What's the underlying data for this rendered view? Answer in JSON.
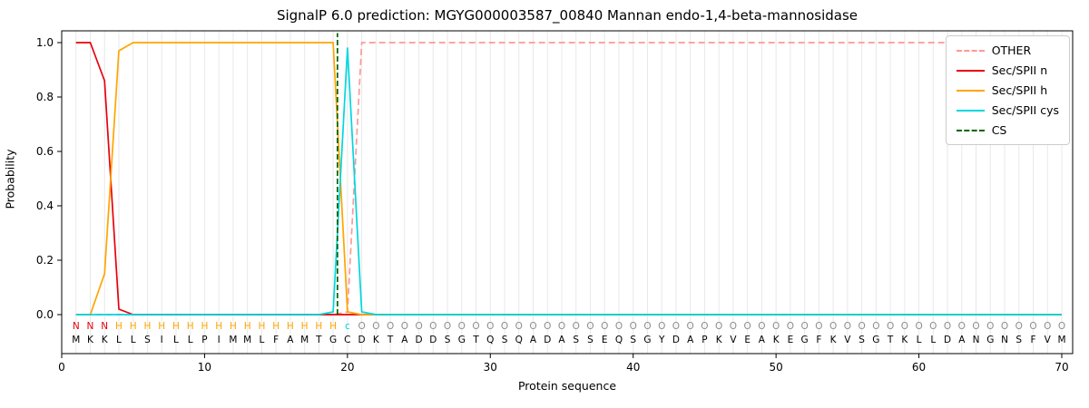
{
  "title": "SignalP 6.0 prediction: MGYG000003587_00840 Mannan endo-1,4-beta-mannosidase",
  "xlabel": "Protein sequence",
  "ylabel": "Probability",
  "chart_data": {
    "type": "line",
    "x_ticks": [
      0,
      10,
      20,
      30,
      40,
      50,
      60,
      70
    ],
    "y_ticks": [
      0.0,
      0.2,
      0.4,
      0.6,
      0.8,
      1.0
    ],
    "xlim": [
      0,
      70.8
    ],
    "ylim": [
      -0.14,
      1.04
    ],
    "grid": "vertical-per-residue",
    "legend_position": "upper-right",
    "sequence": "MKKLLSILLPIMMLFAMTGCDKTADDSGTQSQADASSEQSGYDAPKVEAKEGFKVSGTKLLDANGNSFVM",
    "position_labels": "NNNHHHHHHHHHHHHHHHHcOOOOOOOOOOOOOOOOOOOOOOOOOOOOOOOOOOOOOOOOOOOOOOOOOO",
    "label_colors": {
      "N": "#e8000b",
      "H": "#ffa500",
      "c": "#00d7de",
      "O": "#8c8c8c"
    },
    "cs": {
      "name": "CS",
      "position": 19.3,
      "color": "#006400",
      "dash": true
    },
    "series": [
      {
        "name": "OTHER",
        "color": "#ff9896",
        "dash": true,
        "values": [
          0,
          0,
          0,
          0,
          0,
          0,
          0,
          0,
          0,
          0,
          0,
          0,
          0,
          0,
          0,
          0,
          0,
          0,
          0,
          0.01,
          1,
          1,
          1,
          1,
          1,
          1,
          1,
          1,
          1,
          1,
          1,
          1,
          1,
          1,
          1,
          1,
          1,
          1,
          1,
          1,
          1,
          1,
          1,
          1,
          1,
          1,
          1,
          1,
          1,
          1,
          1,
          1,
          1,
          1,
          1,
          1,
          1,
          1,
          1,
          1,
          1,
          1,
          1,
          1,
          1,
          1,
          1,
          1,
          1,
          1
        ]
      },
      {
        "name": "Sec/SPII n",
        "color": "#e8000b",
        "dash": false,
        "values": [
          1,
          1,
          0.86,
          0.02,
          0,
          0,
          0,
          0,
          0,
          0,
          0,
          0,
          0,
          0,
          0,
          0,
          0,
          0,
          0,
          0,
          0,
          0,
          0,
          0,
          0,
          0,
          0,
          0,
          0,
          0,
          0,
          0,
          0,
          0,
          0,
          0,
          0,
          0,
          0,
          0,
          0,
          0,
          0,
          0,
          0,
          0,
          0,
          0,
          0,
          0,
          0,
          0,
          0,
          0,
          0,
          0,
          0,
          0,
          0,
          0,
          0,
          0,
          0,
          0,
          0,
          0,
          0,
          0,
          0,
          0
        ]
      },
      {
        "name": "Sec/SPII h",
        "color": "#ffa500",
        "dash": false,
        "values": [
          0,
          0,
          0.15,
          0.97,
          1,
          1,
          1,
          1,
          1,
          1,
          1,
          1,
          1,
          1,
          1,
          1,
          1,
          1,
          1,
          0.01,
          0,
          0,
          0,
          0,
          0,
          0,
          0,
          0,
          0,
          0,
          0,
          0,
          0,
          0,
          0,
          0,
          0,
          0,
          0,
          0,
          0,
          0,
          0,
          0,
          0,
          0,
          0,
          0,
          0,
          0,
          0,
          0,
          0,
          0,
          0,
          0,
          0,
          0,
          0,
          0,
          0,
          0,
          0,
          0,
          0,
          0,
          0,
          0,
          0,
          0
        ]
      },
      {
        "name": "Sec/SPII cys",
        "color": "#00d7de",
        "dash": false,
        "values": [
          0,
          0,
          0,
          0,
          0,
          0,
          0,
          0,
          0,
          0,
          0,
          0,
          0,
          0,
          0,
          0,
          0,
          0,
          0.01,
          0.98,
          0.01,
          0,
          0,
          0,
          0,
          0,
          0,
          0,
          0,
          0,
          0,
          0,
          0,
          0,
          0,
          0,
          0,
          0,
          0,
          0,
          0,
          0,
          0,
          0,
          0,
          0,
          0,
          0,
          0,
          0,
          0,
          0,
          0,
          0,
          0,
          0,
          0,
          0,
          0,
          0,
          0,
          0,
          0,
          0,
          0,
          0,
          0,
          0,
          0,
          0
        ]
      }
    ]
  },
  "legend": {
    "items": [
      {
        "label": "OTHER",
        "color": "#ff9896",
        "dash": true
      },
      {
        "label": "Sec/SPII n",
        "color": "#e8000b",
        "dash": false
      },
      {
        "label": "Sec/SPII h",
        "color": "#ffa500",
        "dash": false
      },
      {
        "label": "Sec/SPII cys",
        "color": "#00d7de",
        "dash": false
      },
      {
        "label": "CS",
        "color": "#006400",
        "dash": true
      }
    ]
  }
}
